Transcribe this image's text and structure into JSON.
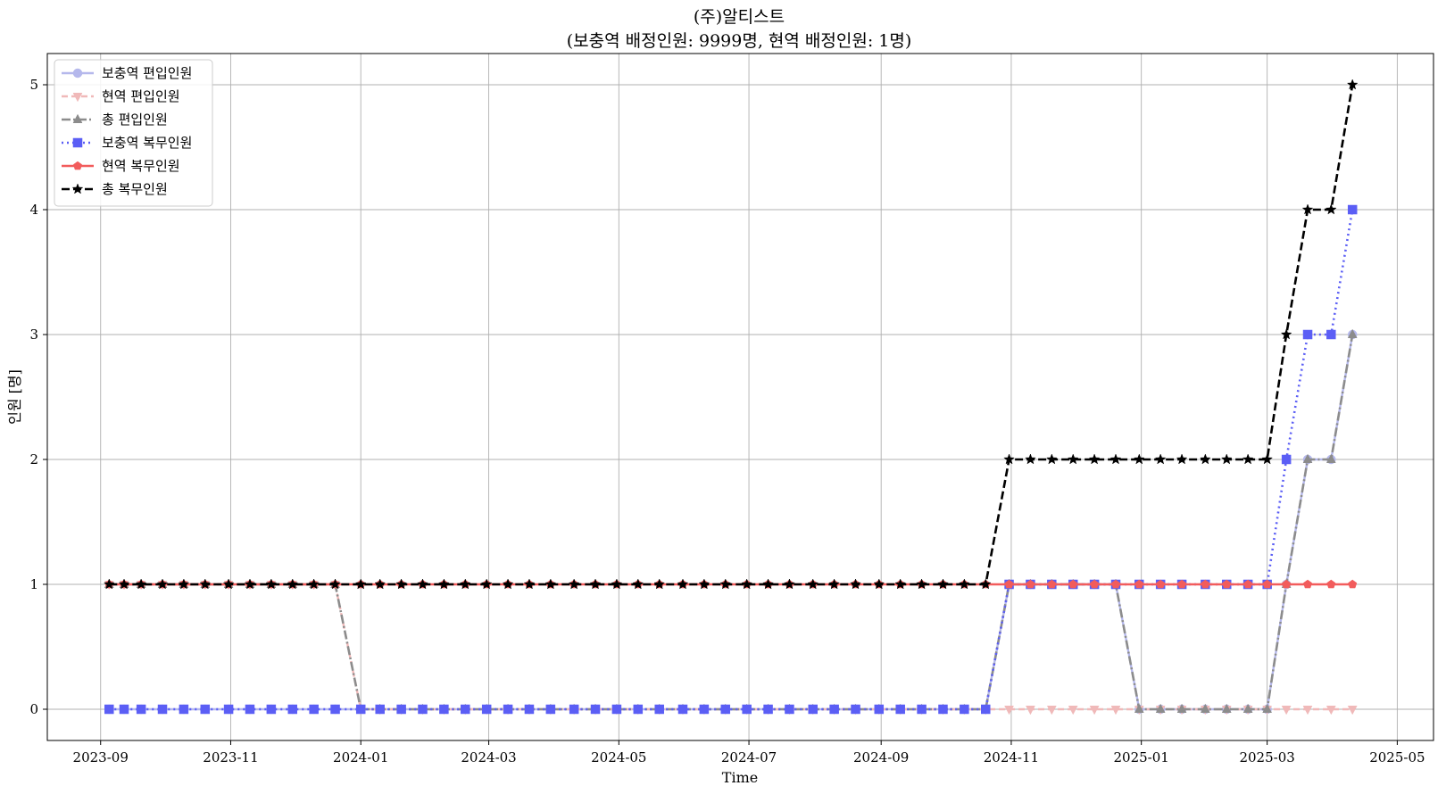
{
  "chart_data": {
    "type": "line",
    "title": "(주)알티스트",
    "subtitle": "(보충역 배정인원: 9999명, 현역 배정인원: 1명)",
    "xlabel": "Time",
    "ylabel": "인원 [명]",
    "ylim": [
      -0.25,
      5.25
    ],
    "xlim": [
      "2023-08-07",
      "2025-05-18"
    ],
    "grid": true,
    "legend_position": "top-left",
    "x_ticks": [
      "2023-09",
      "2023-11",
      "2024-01",
      "2024-03",
      "2024-05",
      "2024-07",
      "2024-09",
      "2024-11",
      "2025-01",
      "2025-03",
      "2025-05"
    ],
    "y_ticks": [
      0,
      1,
      2,
      3,
      4,
      5
    ],
    "x": [
      "2023-09-05",
      "2023-09-12",
      "2023-09-20",
      "2023-09-30",
      "2023-10-10",
      "2023-10-20",
      "2023-10-31",
      "2023-11-10",
      "2023-11-20",
      "2023-11-30",
      "2023-12-10",
      "2023-12-20",
      "2024-01-01",
      "2024-01-10",
      "2024-01-20",
      "2024-01-30",
      "2024-02-09",
      "2024-02-19",
      "2024-02-29",
      "2024-03-10",
      "2024-03-20",
      "2024-03-30",
      "2024-04-10",
      "2024-04-20",
      "2024-04-30",
      "2024-05-10",
      "2024-05-20",
      "2024-05-31",
      "2024-06-10",
      "2024-06-20",
      "2024-06-30",
      "2024-07-10",
      "2024-07-20",
      "2024-07-31",
      "2024-08-10",
      "2024-08-20",
      "2024-08-31",
      "2024-09-10",
      "2024-09-20",
      "2024-09-30",
      "2024-10-10",
      "2024-10-20",
      "2024-10-31",
      "2024-11-10",
      "2024-11-20",
      "2024-11-30",
      "2024-12-10",
      "2024-12-20",
      "2024-12-31",
      "2025-01-10",
      "2025-01-20",
      "2025-01-31",
      "2025-02-10",
      "2025-02-20",
      "2025-03-01",
      "2025-03-10",
      "2025-03-20",
      "2025-03-31",
      "2025-04-10"
    ],
    "series": [
      {
        "name": "보충역 편입인원",
        "color": "#b5b8ec",
        "dash": "",
        "width": 2.4,
        "marker": "circle",
        "values": [
          0,
          0,
          0,
          0,
          0,
          0,
          0,
          0,
          0,
          0,
          0,
          0,
          0,
          0,
          0,
          0,
          0,
          0,
          0,
          0,
          0,
          0,
          0,
          0,
          0,
          0,
          0,
          0,
          0,
          0,
          0,
          0,
          0,
          0,
          0,
          0,
          0,
          0,
          0,
          0,
          0,
          0,
          1,
          1,
          1,
          1,
          1,
          1,
          0,
          0,
          0,
          0,
          0,
          0,
          0,
          1,
          2,
          2,
          3
        ]
      },
      {
        "name": "현역 편입인원",
        "color": "#f0b9b9",
        "dash": "7,4",
        "width": 2.4,
        "marker": "triangle-down",
        "values": [
          1,
          1,
          1,
          1,
          1,
          1,
          1,
          1,
          1,
          1,
          1,
          1,
          0,
          0,
          0,
          0,
          0,
          0,
          0,
          0,
          0,
          0,
          0,
          0,
          0,
          0,
          0,
          0,
          0,
          0,
          0,
          0,
          0,
          0,
          0,
          0,
          0,
          0,
          0,
          0,
          0,
          0,
          0,
          0,
          0,
          0,
          0,
          0,
          0,
          0,
          0,
          0,
          0,
          0,
          0,
          0,
          0,
          0,
          0
        ]
      },
      {
        "name": "총 편입인원",
        "color": "#8c8c8c",
        "dash": "10,3,2,3",
        "width": 2.6,
        "marker": "triangle-up",
        "values": [
          1,
          1,
          1,
          1,
          1,
          1,
          1,
          1,
          1,
          1,
          1,
          1,
          0,
          0,
          0,
          0,
          0,
          0,
          0,
          0,
          0,
          0,
          0,
          0,
          0,
          0,
          0,
          0,
          0,
          0,
          0,
          0,
          0,
          0,
          0,
          0,
          0,
          0,
          0,
          0,
          0,
          0,
          1,
          1,
          1,
          1,
          1,
          1,
          0,
          0,
          0,
          0,
          0,
          0,
          0,
          1,
          2,
          2,
          3
        ]
      },
      {
        "name": "보충역 복무인원",
        "color": "#5b5ef5",
        "dash": "2,4",
        "width": 2.6,
        "marker": "square",
        "values": [
          0,
          0,
          0,
          0,
          0,
          0,
          0,
          0,
          0,
          0,
          0,
          0,
          0,
          0,
          0,
          0,
          0,
          0,
          0,
          0,
          0,
          0,
          0,
          0,
          0,
          0,
          0,
          0,
          0,
          0,
          0,
          0,
          0,
          0,
          0,
          0,
          0,
          0,
          0,
          0,
          0,
          0,
          1,
          1,
          1,
          1,
          1,
          1,
          1,
          1,
          1,
          1,
          1,
          1,
          1,
          2,
          3,
          3,
          4
        ]
      },
      {
        "name": "현역 복무인원",
        "color": "#f25c5c",
        "dash": "",
        "width": 2.6,
        "marker": "pentagon",
        "values": [
          1,
          1,
          1,
          1,
          1,
          1,
          1,
          1,
          1,
          1,
          1,
          1,
          1,
          1,
          1,
          1,
          1,
          1,
          1,
          1,
          1,
          1,
          1,
          1,
          1,
          1,
          1,
          1,
          1,
          1,
          1,
          1,
          1,
          1,
          1,
          1,
          1,
          1,
          1,
          1,
          1,
          1,
          1,
          1,
          1,
          1,
          1,
          1,
          1,
          1,
          1,
          1,
          1,
          1,
          1,
          1,
          1,
          1,
          1
        ]
      },
      {
        "name": "총 복무인원",
        "color": "#000000",
        "dash": "9,4",
        "width": 2.6,
        "marker": "star",
        "values": [
          1,
          1,
          1,
          1,
          1,
          1,
          1,
          1,
          1,
          1,
          1,
          1,
          1,
          1,
          1,
          1,
          1,
          1,
          1,
          1,
          1,
          1,
          1,
          1,
          1,
          1,
          1,
          1,
          1,
          1,
          1,
          1,
          1,
          1,
          1,
          1,
          1,
          1,
          1,
          1,
          1,
          1,
          2,
          2,
          2,
          2,
          2,
          2,
          2,
          2,
          2,
          2,
          2,
          2,
          2,
          3,
          4,
          4,
          5
        ]
      }
    ]
  }
}
